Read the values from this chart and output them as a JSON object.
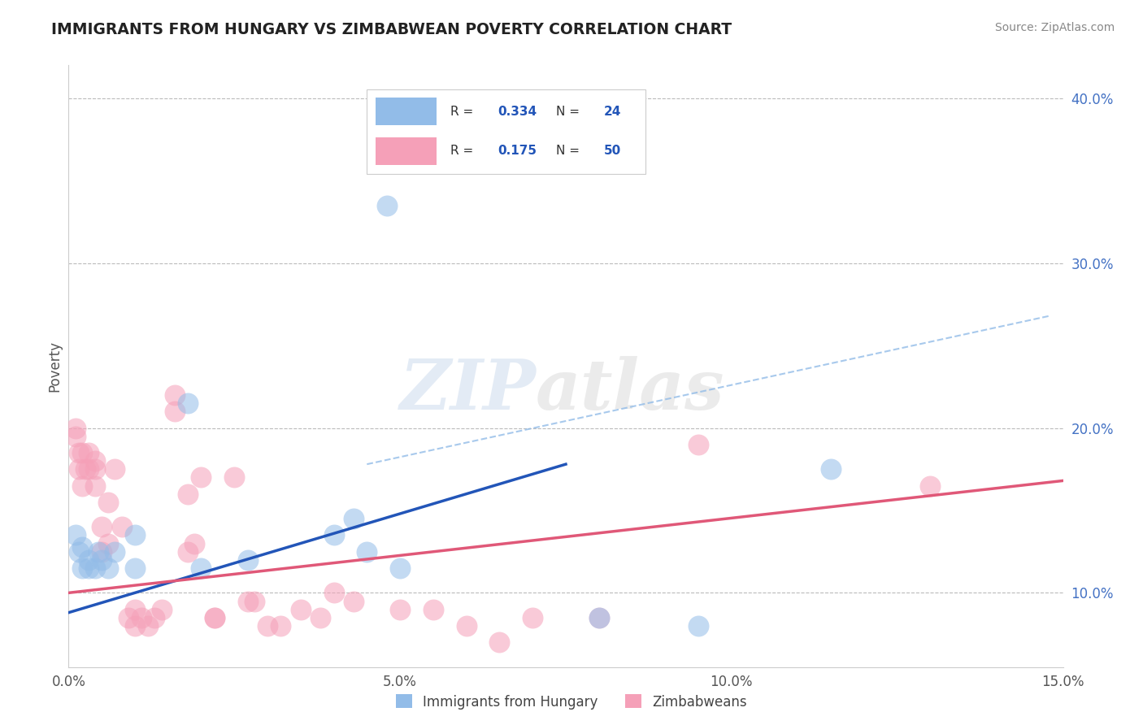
{
  "title": "IMMIGRANTS FROM HUNGARY VS ZIMBABWEAN POVERTY CORRELATION CHART",
  "source_text": "Source: ZipAtlas.com",
  "ylabel": "Poverty",
  "watermark_zip": "ZIP",
  "watermark_atlas": "atlas",
  "xlim": [
    0.0,
    0.15
  ],
  "ylim": [
    0.055,
    0.42
  ],
  "xticks": [
    0.0,
    0.05,
    0.1,
    0.15
  ],
  "xtick_labels": [
    "0.0%",
    "5.0%",
    "10.0%",
    "15.0%"
  ],
  "yticks_right": [
    0.1,
    0.2,
    0.3,
    0.4
  ],
  "ytick_labels_right": [
    "10.0%",
    "20.0%",
    "30.0%",
    "40.0%"
  ],
  "legend_r1": "0.334",
  "legend_n1": "24",
  "legend_r2": "0.175",
  "legend_n2": "50",
  "color_hungary": "#92bce8",
  "color_zimbabwe": "#f5a0b8",
  "color_line_hungary": "#2255b8",
  "color_line_zimbabwe": "#e05878",
  "color_dashed": "#92bce8",
  "hungary_x": [
    0.001,
    0.0015,
    0.002,
    0.002,
    0.003,
    0.003,
    0.004,
    0.0045,
    0.005,
    0.006,
    0.007,
    0.01,
    0.01,
    0.018,
    0.02,
    0.027,
    0.04,
    0.043,
    0.045,
    0.05,
    0.048,
    0.08,
    0.095,
    0.115
  ],
  "hungary_y": [
    0.135,
    0.125,
    0.115,
    0.128,
    0.12,
    0.115,
    0.115,
    0.125,
    0.12,
    0.115,
    0.125,
    0.115,
    0.135,
    0.215,
    0.115,
    0.12,
    0.135,
    0.145,
    0.125,
    0.115,
    0.335,
    0.085,
    0.08,
    0.175
  ],
  "zimbabwe_x": [
    0.001,
    0.001,
    0.0015,
    0.0015,
    0.002,
    0.002,
    0.0025,
    0.003,
    0.003,
    0.004,
    0.004,
    0.004,
    0.005,
    0.005,
    0.006,
    0.006,
    0.007,
    0.008,
    0.009,
    0.01,
    0.01,
    0.011,
    0.012,
    0.013,
    0.014,
    0.016,
    0.016,
    0.018,
    0.018,
    0.019,
    0.02,
    0.022,
    0.022,
    0.025,
    0.027,
    0.028,
    0.03,
    0.032,
    0.035,
    0.038,
    0.04,
    0.043,
    0.05,
    0.055,
    0.06,
    0.065,
    0.07,
    0.08,
    0.095,
    0.13
  ],
  "zimbabwe_y": [
    0.2,
    0.195,
    0.185,
    0.175,
    0.185,
    0.165,
    0.175,
    0.175,
    0.185,
    0.165,
    0.175,
    0.18,
    0.125,
    0.14,
    0.13,
    0.155,
    0.175,
    0.14,
    0.085,
    0.08,
    0.09,
    0.085,
    0.08,
    0.085,
    0.09,
    0.22,
    0.21,
    0.16,
    0.125,
    0.13,
    0.17,
    0.085,
    0.085,
    0.17,
    0.095,
    0.095,
    0.08,
    0.08,
    0.09,
    0.085,
    0.1,
    0.095,
    0.09,
    0.09,
    0.08,
    0.07,
    0.085,
    0.085,
    0.19,
    0.165
  ],
  "blue_line_x0": 0.0,
  "blue_line_y0": 0.088,
  "blue_line_x1": 0.075,
  "blue_line_y1": 0.178,
  "pink_line_x0": 0.0,
  "pink_line_y0": 0.1,
  "pink_line_x1": 0.15,
  "pink_line_y1": 0.168,
  "dash_line_x0": 0.045,
  "dash_line_y0": 0.178,
  "dash_line_x1": 0.148,
  "dash_line_y1": 0.268
}
